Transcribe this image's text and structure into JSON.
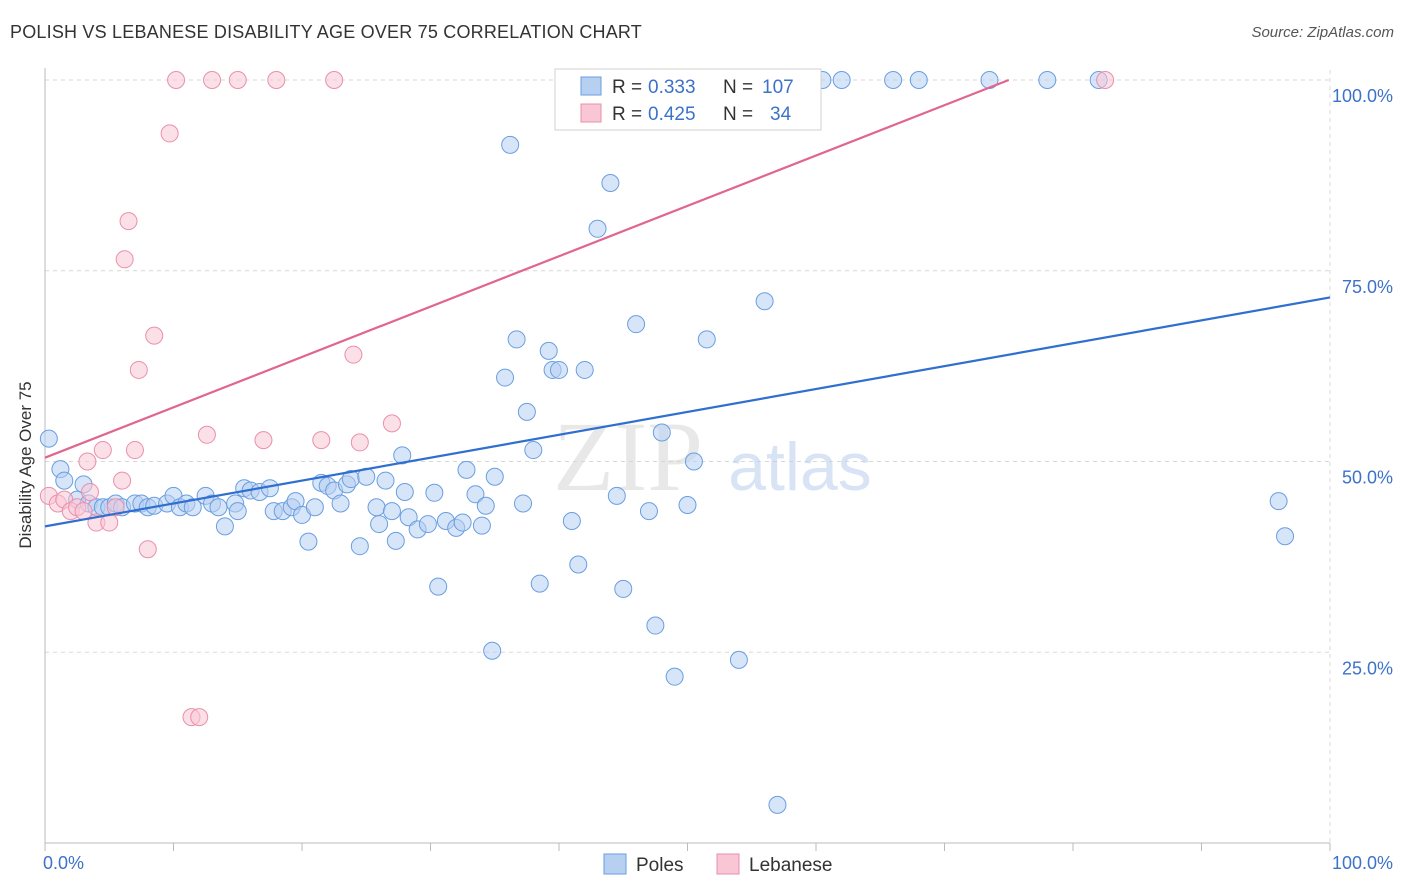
{
  "header": {
    "title": "POLISH VS LEBANESE DISABILITY AGE OVER 75 CORRELATION CHART",
    "source": "Source: ZipAtlas.com"
  },
  "watermark": {
    "zip": "ZIP",
    "atlas": "atlas"
  },
  "legend_box": {
    "rows": [
      {
        "r_label": "R =",
        "r_value": "0.333",
        "n_label": "N =",
        "n_value": "107"
      },
      {
        "r_label": "R =",
        "r_value": "0.425",
        "n_label": "N =",
        "n_value": "34"
      }
    ]
  },
  "bottom_legend": {
    "items": [
      "Poles",
      "Lebanese"
    ]
  },
  "colors": {
    "poles_fill": "#b7d0f2",
    "poles_stroke": "#6a9ee0",
    "poles_line": "#2f6fd0",
    "lebanese_fill": "#f9c6d6",
    "lebanese_stroke": "#ea8fac",
    "lebanese_line": "#e0668f",
    "tick_text": "#3d72c9",
    "grid": "#d8d8d8"
  },
  "chart_data": {
    "type": "scatter",
    "title": "POLISH VS LEBANESE DISABILITY AGE OVER 75 CORRELATION CHART",
    "xlabel": "",
    "ylabel": "Disability Age Over 75",
    "xlim": [
      0,
      100
    ],
    "ylim": [
      0,
      100
    ],
    "x_tick_labels": [
      "0.0%",
      "100.0%"
    ],
    "y_ticks": [
      25,
      50,
      75,
      100
    ],
    "y_tick_labels": [
      "25.0%",
      "50.0%",
      "75.0%",
      "100.0%"
    ],
    "grid": true,
    "legend_position": "top-center",
    "series": [
      {
        "name": "Poles",
        "r": 0.333,
        "n": 107,
        "trend": {
          "x": [
            0,
            100
          ],
          "y": [
            41.5,
            71.5
          ]
        },
        "points": [
          [
            0.3,
            53
          ],
          [
            1.2,
            49
          ],
          [
            1.5,
            47.5
          ],
          [
            2.5,
            45
          ],
          [
            3.4,
            44.5
          ],
          [
            3,
            47
          ],
          [
            4,
            44
          ],
          [
            4.5,
            44
          ],
          [
            5,
            44
          ],
          [
            5.5,
            44.5
          ],
          [
            6,
            44
          ],
          [
            7,
            44.5
          ],
          [
            7.5,
            44.5
          ],
          [
            8,
            44
          ],
          [
            8.5,
            44.2
          ],
          [
            9.5,
            44.5
          ],
          [
            10,
            45.5
          ],
          [
            10.5,
            44
          ],
          [
            11,
            44.5
          ],
          [
            11.5,
            44
          ],
          [
            12.5,
            45.5
          ],
          [
            13,
            44.5
          ],
          [
            13.5,
            44
          ],
          [
            14,
            41.5
          ],
          [
            14.8,
            44.5
          ],
          [
            15,
            43.5
          ],
          [
            15.5,
            46.5
          ],
          [
            16,
            46.2
          ],
          [
            16.7,
            46
          ],
          [
            17.5,
            46.5
          ],
          [
            17.8,
            43.5
          ],
          [
            18.5,
            43.5
          ],
          [
            19.2,
            44
          ],
          [
            19.5,
            44.8
          ],
          [
            20,
            43
          ],
          [
            20.5,
            39.5
          ],
          [
            21,
            44
          ],
          [
            21.5,
            47.2
          ],
          [
            22,
            46.8
          ],
          [
            22.5,
            46.2
          ],
          [
            23,
            44.5
          ],
          [
            23.5,
            47
          ],
          [
            23.8,
            47.7
          ],
          [
            24.5,
            38.9
          ],
          [
            25,
            48
          ],
          [
            25.8,
            44
          ],
          [
            26,
            41.8
          ],
          [
            26.5,
            47.5
          ],
          [
            27,
            43.5
          ],
          [
            27.3,
            39.6
          ],
          [
            27.8,
            50.8
          ],
          [
            28,
            46
          ],
          [
            28.3,
            42.7
          ],
          [
            29,
            41.1
          ],
          [
            29.8,
            41.8
          ],
          [
            30.3,
            45.9
          ],
          [
            30.6,
            33.6
          ],
          [
            31.2,
            42.2
          ],
          [
            32,
            41.3
          ],
          [
            32.5,
            42
          ],
          [
            32.8,
            48.9
          ],
          [
            33.5,
            45.7
          ],
          [
            34,
            41.6
          ],
          [
            34.3,
            44.2
          ],
          [
            34.8,
            25.2
          ],
          [
            35,
            48
          ],
          [
            35.8,
            61
          ],
          [
            36.2,
            91.5
          ],
          [
            36.7,
            66
          ],
          [
            37.2,
            44.5
          ],
          [
            37.5,
            56.5
          ],
          [
            38,
            51.5
          ],
          [
            38.5,
            34
          ],
          [
            39.2,
            64.5
          ],
          [
            39.5,
            62
          ],
          [
            40,
            62
          ],
          [
            41,
            42.2
          ],
          [
            41.5,
            36.5
          ],
          [
            42,
            62
          ],
          [
            43,
            80.5
          ],
          [
            44,
            86.5
          ],
          [
            44.5,
            45.5
          ],
          [
            45,
            33.3
          ],
          [
            46,
            68
          ],
          [
            47,
            43.5
          ],
          [
            47.5,
            28.5
          ],
          [
            48,
            53.8
          ],
          [
            49,
            21.8
          ],
          [
            50,
            44.3
          ],
          [
            50.5,
            50
          ],
          [
            51.5,
            66
          ],
          [
            54,
            24
          ],
          [
            56,
            71
          ],
          [
            57,
            5
          ],
          [
            60.5,
            100
          ],
          [
            62,
            100
          ],
          [
            66,
            100
          ],
          [
            68,
            100
          ],
          [
            73.5,
            100
          ],
          [
            78,
            100
          ],
          [
            82,
            100
          ],
          [
            96,
            44.8
          ],
          [
            96.5,
            40.2
          ]
        ]
      },
      {
        "name": "Lebanese",
        "r": 0.425,
        "n": 34,
        "trend": {
          "x": [
            0,
            75
          ],
          "y": [
            50.5,
            100
          ]
        },
        "points": [
          [
            0.3,
            45.5
          ],
          [
            1,
            44.5
          ],
          [
            1.5,
            45
          ],
          [
            2,
            43.5
          ],
          [
            2.5,
            44
          ],
          [
            3,
            43.5
          ],
          [
            3.3,
            50
          ],
          [
            3.5,
            46
          ],
          [
            4,
            42
          ],
          [
            4.5,
            51.5
          ],
          [
            5,
            42
          ],
          [
            5.5,
            44
          ],
          [
            6,
            47.5
          ],
          [
            6.2,
            76.5
          ],
          [
            6.5,
            81.5
          ],
          [
            7,
            51.5
          ],
          [
            7.3,
            62
          ],
          [
            8,
            38.5
          ],
          [
            8.5,
            66.5
          ],
          [
            9.7,
            93
          ],
          [
            10.2,
            100
          ],
          [
            11.4,
            16.5
          ],
          [
            12,
            16.5
          ],
          [
            12.6,
            53.5
          ],
          [
            13,
            100
          ],
          [
            15,
            100
          ],
          [
            17,
            52.8
          ],
          [
            18,
            100
          ],
          [
            21.5,
            52.8
          ],
          [
            22.5,
            100
          ],
          [
            24,
            64
          ],
          [
            24.5,
            52.5
          ],
          [
            27,
            55
          ],
          [
            82.5,
            100
          ]
        ]
      }
    ]
  }
}
